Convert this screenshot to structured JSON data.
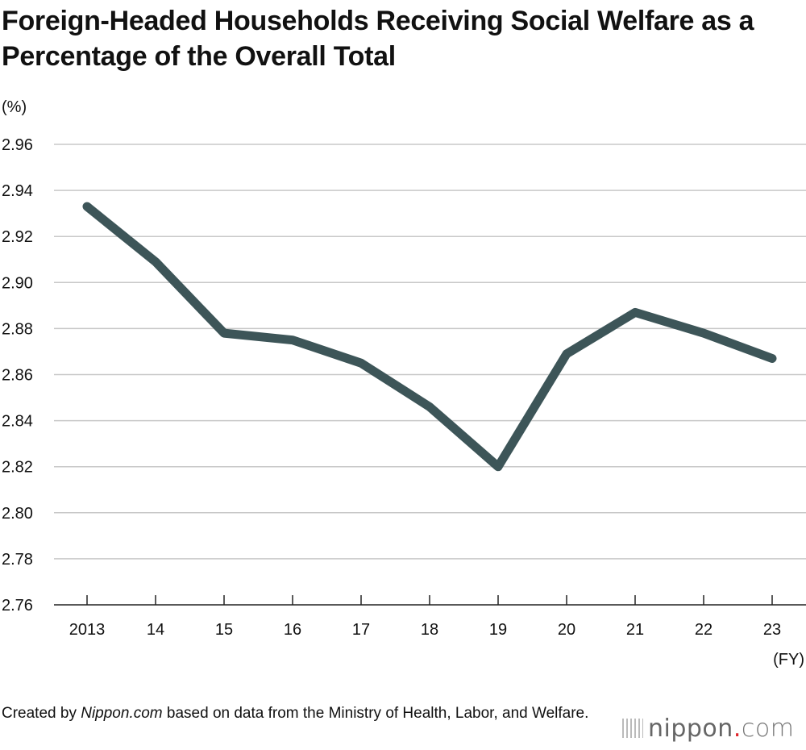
{
  "chart_data": {
    "type": "line",
    "title": "Foreign-Headed Households Receiving Social Welfare as a Percentage of the Overall Total",
    "ylabel": "(%)",
    "xlabel": "(FY)",
    "categories": [
      "2013",
      "14",
      "15",
      "16",
      "17",
      "18",
      "19",
      "20",
      "21",
      "22",
      "23"
    ],
    "series": [
      {
        "values": [
          2.933,
          2.909,
          2.878,
          2.875,
          2.865,
          2.846,
          2.82,
          2.869,
          2.887,
          2.878,
          2.867
        ]
      }
    ],
    "ylim": [
      2.76,
      2.96
    ],
    "yticks": [
      "2.96",
      "2.94",
      "2.92",
      "2.90",
      "2.88",
      "2.86",
      "2.84",
      "2.82",
      "2.80",
      "2.78",
      "2.76"
    ],
    "grid": true,
    "line_color": "#3d5558"
  },
  "source": {
    "prefix": "Created by ",
    "site": "Nippon.com",
    "suffix": " based on data from the Ministry of Health, Labor, and Welfare."
  },
  "logo": {
    "name": "nippon",
    "dot": ".",
    "tld": "com"
  }
}
